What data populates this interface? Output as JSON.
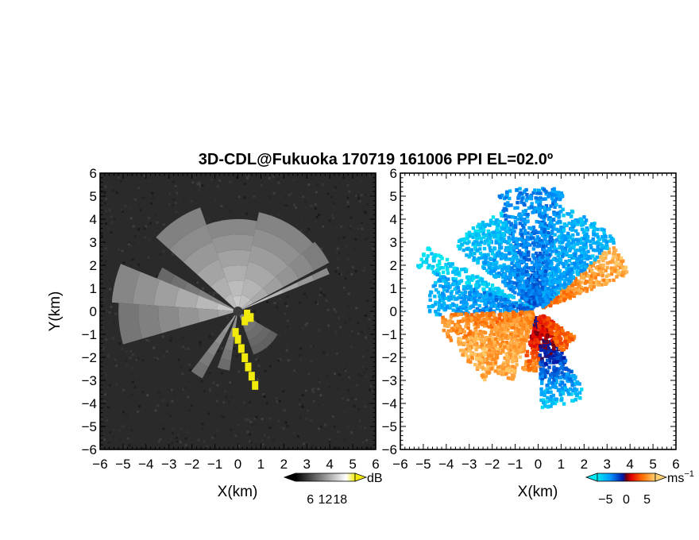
{
  "title": "3D-CDL@Fukuoka 170719 161006 PPI EL=02.0º",
  "colors": {
    "detection": "#f2ea0a",
    "background_noise": "#2a2a2a",
    "velocity_negative": [
      "#00e0f0",
      "#0090ff",
      "#0030d0"
    ],
    "velocity_positive": [
      "#c00000",
      "#ff3000",
      "#ff9000",
      "#ffc040"
    ]
  },
  "chart_data": [
    {
      "type": "heatmap",
      "name": "reflectivity-ppi",
      "xlabel": "X(km)",
      "ylabel": "Y(km)",
      "xlim": [
        -6,
        6
      ],
      "ylim": [
        -6,
        6
      ],
      "xticks": [
        "-6",
        "-5",
        "-4",
        "-3",
        "-2",
        "-1",
        "0",
        "1",
        "2",
        "3",
        "4",
        "5",
        "6"
      ],
      "yticks": [
        "6",
        "5",
        "4",
        "3",
        "2",
        "1",
        "0",
        "-1",
        "-2",
        "-3",
        "-4",
        "-5",
        "-6"
      ],
      "colorbar": {
        "unit": "dB",
        "ticks": [
          "6",
          "12",
          "18"
        ],
        "range": [
          0,
          24
        ]
      },
      "beams": [
        {
          "from": 22,
          "to": 26,
          "reach_km": 4.3,
          "level": 0.75
        },
        {
          "from": 28,
          "to": 42,
          "reach_km": 4.5,
          "level": 0.62
        },
        {
          "from": 42,
          "to": 78,
          "reach_km": 4.4,
          "level": 0.68
        },
        {
          "from": 78,
          "to": 110,
          "reach_km": 4.0,
          "level": 0.72
        },
        {
          "from": 110,
          "to": 138,
          "reach_km": 4.8,
          "level": 0.65
        },
        {
          "from": 150,
          "to": 158,
          "reach_km": 3.8,
          "level": 0.42
        },
        {
          "from": 158,
          "to": 176,
          "reach_km": 5.5,
          "level": 0.7
        },
        {
          "from": 176,
          "to": 196,
          "reach_km": 5.2,
          "level": 0.55
        },
        {
          "from": 232,
          "to": 242,
          "reach_km": 3.3,
          "level": 0.5
        },
        {
          "from": 250,
          "to": 262,
          "reach_km": 2.6,
          "level": 0.45
        },
        {
          "from": 290,
          "to": 330,
          "reach_km": 2.0,
          "level": 0.35
        }
      ],
      "strong_echo_points": [
        [
          0.4,
          -0.1
        ],
        [
          0.55,
          -0.25
        ],
        [
          0.3,
          -0.4
        ],
        [
          -0.1,
          -0.9
        ],
        [
          0.0,
          -1.2
        ],
        [
          0.15,
          -1.6
        ],
        [
          0.3,
          -2.0
        ],
        [
          0.45,
          -2.4
        ],
        [
          0.6,
          -2.8
        ],
        [
          0.75,
          -3.2
        ]
      ]
    },
    {
      "type": "heatmap",
      "name": "doppler-velocity-ppi",
      "xlabel": "X(km)",
      "ylabel": "",
      "xlim": [
        -6,
        6
      ],
      "ylim": [
        -6,
        6
      ],
      "xticks": [
        "-6",
        "-5",
        "-4",
        "-3",
        "-2",
        "-1",
        "0",
        "1",
        "2",
        "3",
        "4",
        "5",
        "6"
      ],
      "yticks": [
        "6",
        "5",
        "4",
        "3",
        "2",
        "1",
        "0",
        "-1",
        "-2",
        "-3",
        "-4",
        "-5",
        "-6"
      ],
      "colorbar": {
        "unit": "ms",
        "unit_exp": "−1",
        "ticks": [
          "−5",
          "0",
          "5"
        ],
        "range": [
          -7,
          7
        ]
      },
      "sectors": [
        {
          "from": 22,
          "to": 42,
          "reach_km": 4.3,
          "v_near": 4,
          "v_far": 6
        },
        {
          "from": 42,
          "to": 78,
          "reach_km": 4.6,
          "v_near": -4,
          "v_far": -5
        },
        {
          "from": 78,
          "to": 110,
          "reach_km": 5.4,
          "v_near": -3,
          "v_far": -4
        },
        {
          "from": 110,
          "to": 142,
          "reach_km": 4.6,
          "v_near": -2.5,
          "v_far": -6
        },
        {
          "from": 150,
          "to": 160,
          "reach_km": 5.6,
          "v_near": -5,
          "v_far": -6.5
        },
        {
          "from": 160,
          "to": 182,
          "reach_km": 4.8,
          "v_near": -3,
          "v_far": -5
        },
        {
          "from": 182,
          "to": 200,
          "reach_km": 4.2,
          "v_near": 4,
          "v_far": 5
        },
        {
          "from": 200,
          "to": 232,
          "reach_km": 3.8,
          "v_near": 5,
          "v_far": 6
        },
        {
          "from": 234,
          "to": 250,
          "reach_km": 3.2,
          "v_near": 5,
          "v_far": 6
        },
        {
          "from": 255,
          "to": 272,
          "reach_km": 2.6,
          "v_near": -2,
          "v_far": 5
        },
        {
          "from": 272,
          "to": 300,
          "reach_km": 4.2,
          "v_near": 3,
          "v_far": -6
        },
        {
          "from": 300,
          "to": 325,
          "reach_km": 2.0,
          "v_near": 2,
          "v_far": 4
        }
      ]
    }
  ]
}
